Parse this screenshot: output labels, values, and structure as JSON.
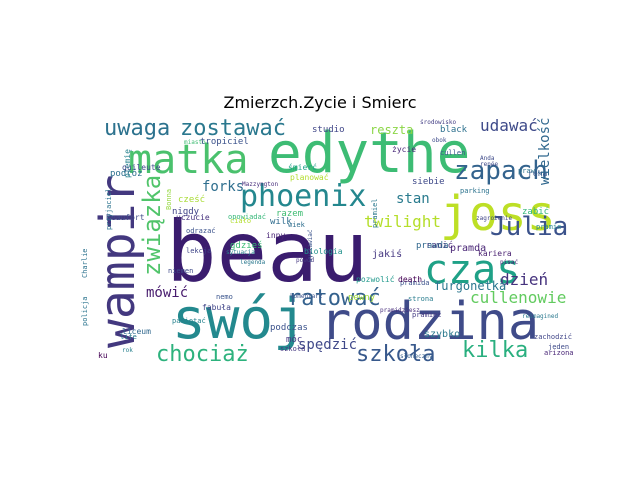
{
  "title": "Zmierzch.Zycie i Smierc",
  "words": [
    {
      "text": "edythe",
      "color": "#3dbc74"
    },
    {
      "text": "beau",
      "color": "#3a1c6e"
    },
    {
      "text": "rodzina",
      "color": "#3f4b89"
    },
    {
      "text": "wampir",
      "color": "#43387f"
    },
    {
      "text": "swój",
      "color": "#23898e"
    },
    {
      "text": "matka",
      "color": "#4ac16d"
    },
    {
      "text": "joss",
      "color": "#bddf26"
    },
    {
      "text": "czas",
      "color": "#1fa187"
    },
    {
      "text": "phoenix",
      "color": "#24878e"
    },
    {
      "text": "zapach",
      "color": "#33638d"
    },
    {
      "text": "Julia",
      "color": "#3b528b"
    },
    {
      "text": "uwaga",
      "color": "#2c728e"
    },
    {
      "text": "zostawać",
      "color": "#2a788e"
    },
    {
      "text": "związka",
      "color": "#50c46a"
    },
    {
      "text": "ratować",
      "color": "#34618d"
    },
    {
      "text": "chociaż",
      "color": "#2db27d"
    },
    {
      "text": "szkoła",
      "color": "#38598c"
    },
    {
      "text": "kilka",
      "color": "#29af7f"
    },
    {
      "text": "cullenowie",
      "color": "#62cb5f"
    },
    {
      "text": "udawać",
      "color": "#3e4a89"
    },
    {
      "text": "twilight",
      "color": "#b5de2b"
    },
    {
      "text": "stan",
      "color": "#297b8e"
    },
    {
      "text": "dzień",
      "color": "#46337e"
    },
    {
      "text": "mówić",
      "color": "#481c6e"
    },
    {
      "text": "spędzić",
      "color": "#3f4889"
    },
    {
      "text": "furgonetka",
      "color": "#2a768e"
    },
    {
      "text": "reszta",
      "color": "#8bd646"
    },
    {
      "text": "forks",
      "color": "#2e6e8e"
    },
    {
      "text": "pewny",
      "color": "#a0da39"
    },
    {
      "text": "pozwolić",
      "color": "#1f988b"
    },
    {
      "text": "gdzieś",
      "color": "#3bbb75"
    },
    {
      "text": "nigdy",
      "color": "#414487"
    },
    {
      "text": "cześć",
      "color": "#a8db34"
    },
    {
      "text": "studio",
      "color": "#404688"
    },
    {
      "text": "black",
      "color": "#2d708e"
    },
    {
      "text": "cullen",
      "color": "#39568c"
    },
    {
      "text": "pramie",
      "color": "#25848e"
    },
    {
      "text": "Bonna",
      "color": "#95d840"
    },
    {
      "text": "podczas",
      "color": "#3b528b"
    },
    {
      "text": "móc",
      "color": "#453882"
    },
    {
      "text": "liceum",
      "color": "#31688e"
    },
    {
      "text": "Charlie",
      "color": "#2c728e"
    },
    {
      "text": "inny",
      "color": "#482475"
    },
    {
      "text": "pramiel",
      "color": "#2a788e"
    },
    {
      "text": "pramiec",
      "color": "#443a83"
    },
    {
      "text": "praw",
      "color": "#2c738e"
    },
    {
      "text": "pramida",
      "color": "#3b528b"
    },
    {
      "text": "pramidziesz",
      "color": "#472d7b"
    },
    {
      "text": "pamiętać",
      "color": "#26828e"
    },
    {
      "text": "wiek",
      "color": "#2e6e8e"
    },
    {
      "text": "miasto",
      "color": "#3fbc73"
    },
    {
      "text": "biologia",
      "color": "#21918c"
    },
    {
      "text": "zabić",
      "color": "#35b779"
    },
    {
      "text": "szybko",
      "color": "#2a788e"
    },
    {
      "text": "ranić",
      "color": "#472c7a"
    },
    {
      "text": "pramda",
      "color": "#482475"
    },
    {
      "text": "jakiś",
      "color": "#453781"
    },
    {
      "text": "siebie",
      "color": "#3e4989"
    },
    {
      "text": "strona",
      "color": "#287c8e"
    },
    {
      "text": "fabuła",
      "color": "#404588"
    },
    {
      "text": "death",
      "color": "#440154"
    },
    {
      "text": "sytuacja",
      "color": "#27808e"
    },
    {
      "text": "nemo",
      "color": "#3a548c"
    },
    {
      "text": "planować",
      "color": "#b2dd2d"
    },
    {
      "text": "tropiciel",
      "color": "#3b528b"
    },
    {
      "text": "podróż",
      "color": "#2d708e"
    },
    {
      "text": "plemię",
      "color": "#26828e"
    },
    {
      "text": "Beaufort",
      "color": "#3e4a89"
    },
    {
      "text": "wilk",
      "color": "#2f6c8e"
    },
    {
      "text": "razem",
      "color": "#3fbc73"
    },
    {
      "text": "lekcja",
      "color": "#404688"
    },
    {
      "text": "uczucie",
      "color": "#46327e"
    },
    {
      "text": "śmierć",
      "color": "#1fa188"
    },
    {
      "text": "życie",
      "color": "#482878"
    },
    {
      "text": "kariera",
      "color": "#481f70"
    },
    {
      "text": "prawda",
      "color": "#31688e"
    },
    {
      "text": "ręka",
      "color": "#39568c"
    },
    {
      "text": "niemen",
      "color": "#3e4989"
    },
    {
      "text": "obok",
      "color": "#3e4a89"
    },
    {
      "text": "parking",
      "color": "#2c738e"
    },
    {
      "text": "środowisko",
      "color": "#433e85"
    },
    {
      "text": "policja",
      "color": "#2b748e"
    },
    {
      "text": "ku",
      "color": "#440154"
    },
    {
      "text": "life",
      "color": "#2a788e"
    },
    {
      "text": "rok",
      "color": "#27808e"
    },
    {
      "text": "jeden",
      "color": "#3e4a89"
    },
    {
      "text": "arizona",
      "color": "#482576"
    },
    {
      "text": "słoneczny",
      "color": "#355f8d"
    },
    {
      "text": "quileute",
      "color": "#3e4a89"
    },
    {
      "text": "Mazzyngton",
      "color": "#472d7b"
    },
    {
      "text": "szkoła",
      "color": "#453882"
    },
    {
      "text": "komentarz",
      "color": "#3b528b"
    },
    {
      "text": "zachodzić",
      "color": "#404588"
    },
    {
      "text": "reimagined",
      "color": "#2a788e"
    },
    {
      "text": "odrazać",
      "color": "#3b528b"
    },
    {
      "text": "opowiadać",
      "color": "#35b779"
    },
    {
      "text": "Anda",
      "color": "#3e4a89"
    },
    {
      "text": "renée",
      "color": "#3e4a89"
    },
    {
      "text": "przyjaciel",
      "color": "#2c738e"
    },
    {
      "text": "powód",
      "color": "#453882"
    },
    {
      "text": "wysławiać",
      "color": "#3b528b"
    },
    {
      "text": "legenda",
      "color": "#2a788e"
    },
    {
      "text": "zagrożenie",
      "color": "#404688"
    },
    {
      "text": "ciało",
      "color": "#b2dd2d"
    },
    {
      "text": "wielkość",
      "color": "#31688e"
    },
    {
      "text": "pisać",
      "color": "#482475"
    }
  ]
}
